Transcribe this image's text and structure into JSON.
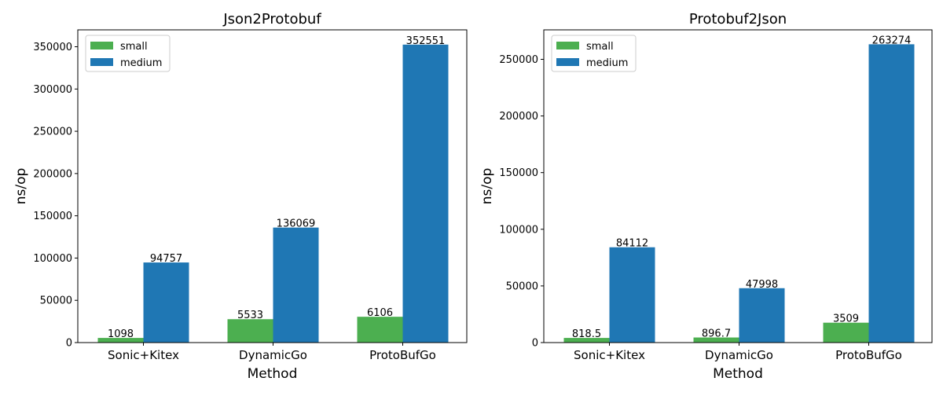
{
  "chart_data": [
    {
      "type": "bar",
      "title": "Json2Protobuf",
      "xlabel": "Method",
      "ylabel": "ns/op",
      "categories": [
        "Sonic+Kitex",
        "DynamicGo",
        "ProtoBufGo"
      ],
      "ylim": [
        0,
        370000
      ],
      "yticks": [
        0,
        50000,
        100000,
        150000,
        200000,
        250000,
        300000,
        350000
      ],
      "legend_position": "top-left",
      "series": [
        {
          "name": "small",
          "color": "#4CAF50",
          "values": [
            5490,
            27665,
            30530
          ],
          "labels": [
            "1098",
            "5533",
            "6106"
          ]
        },
        {
          "name": "medium",
          "color": "#1F77B4",
          "values": [
            94757,
            136069,
            352551
          ],
          "labels": [
            "94757",
            "136069",
            "352551"
          ]
        }
      ]
    },
    {
      "type": "bar",
      "title": "Protobuf2Json",
      "xlabel": "Method",
      "ylabel": "ns/op",
      "categories": [
        "Sonic+Kitex",
        "DynamicGo",
        "ProtoBufGo"
      ],
      "ylim": [
        0,
        276000
      ],
      "yticks": [
        0,
        50000,
        100000,
        150000,
        200000,
        250000
      ],
      "legend_position": "top-left",
      "series": [
        {
          "name": "small",
          "color": "#4CAF50",
          "values": [
            4093,
            4484,
            17545
          ],
          "labels": [
            "818.5",
            "896.7",
            "3509"
          ]
        },
        {
          "name": "medium",
          "color": "#1F77B4",
          "values": [
            84112,
            47998,
            263274
          ],
          "labels": [
            "84112",
            "47998",
            "263274"
          ]
        }
      ]
    }
  ]
}
